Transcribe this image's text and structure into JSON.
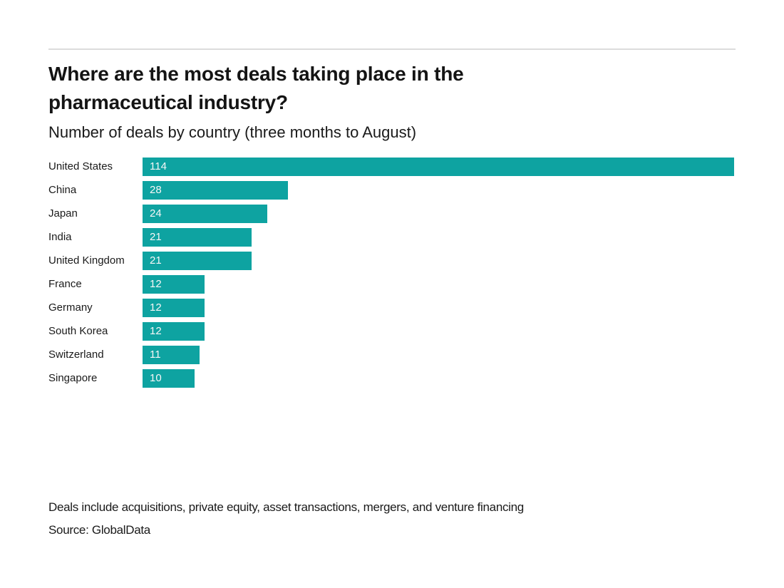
{
  "chart_data": {
    "type": "bar",
    "orientation": "horizontal",
    "title": "Where are the most deals taking place in the pharmaceutical industry?",
    "subtitle": "Number of deals by country (three months to August)",
    "categories": [
      "United States",
      "China",
      "Japan",
      "India",
      "United Kingdom",
      "France",
      "Germany",
      "South Korea",
      "Switzerland",
      "Singapore"
    ],
    "values": [
      114,
      28,
      24,
      21,
      21,
      12,
      12,
      12,
      11,
      10
    ],
    "xlim": [
      0,
      114
    ],
    "grid": false,
    "legend": false,
    "value_labels": "inside-left",
    "bar_color": "#0ea3a1",
    "value_label_color": "#f7f7f7",
    "label_color": "#1a1a1a"
  },
  "footer": {
    "note": "Deals include acquisitions, private equity, asset transactions, mergers, and venture financing",
    "source": "Source: GlobalData"
  }
}
